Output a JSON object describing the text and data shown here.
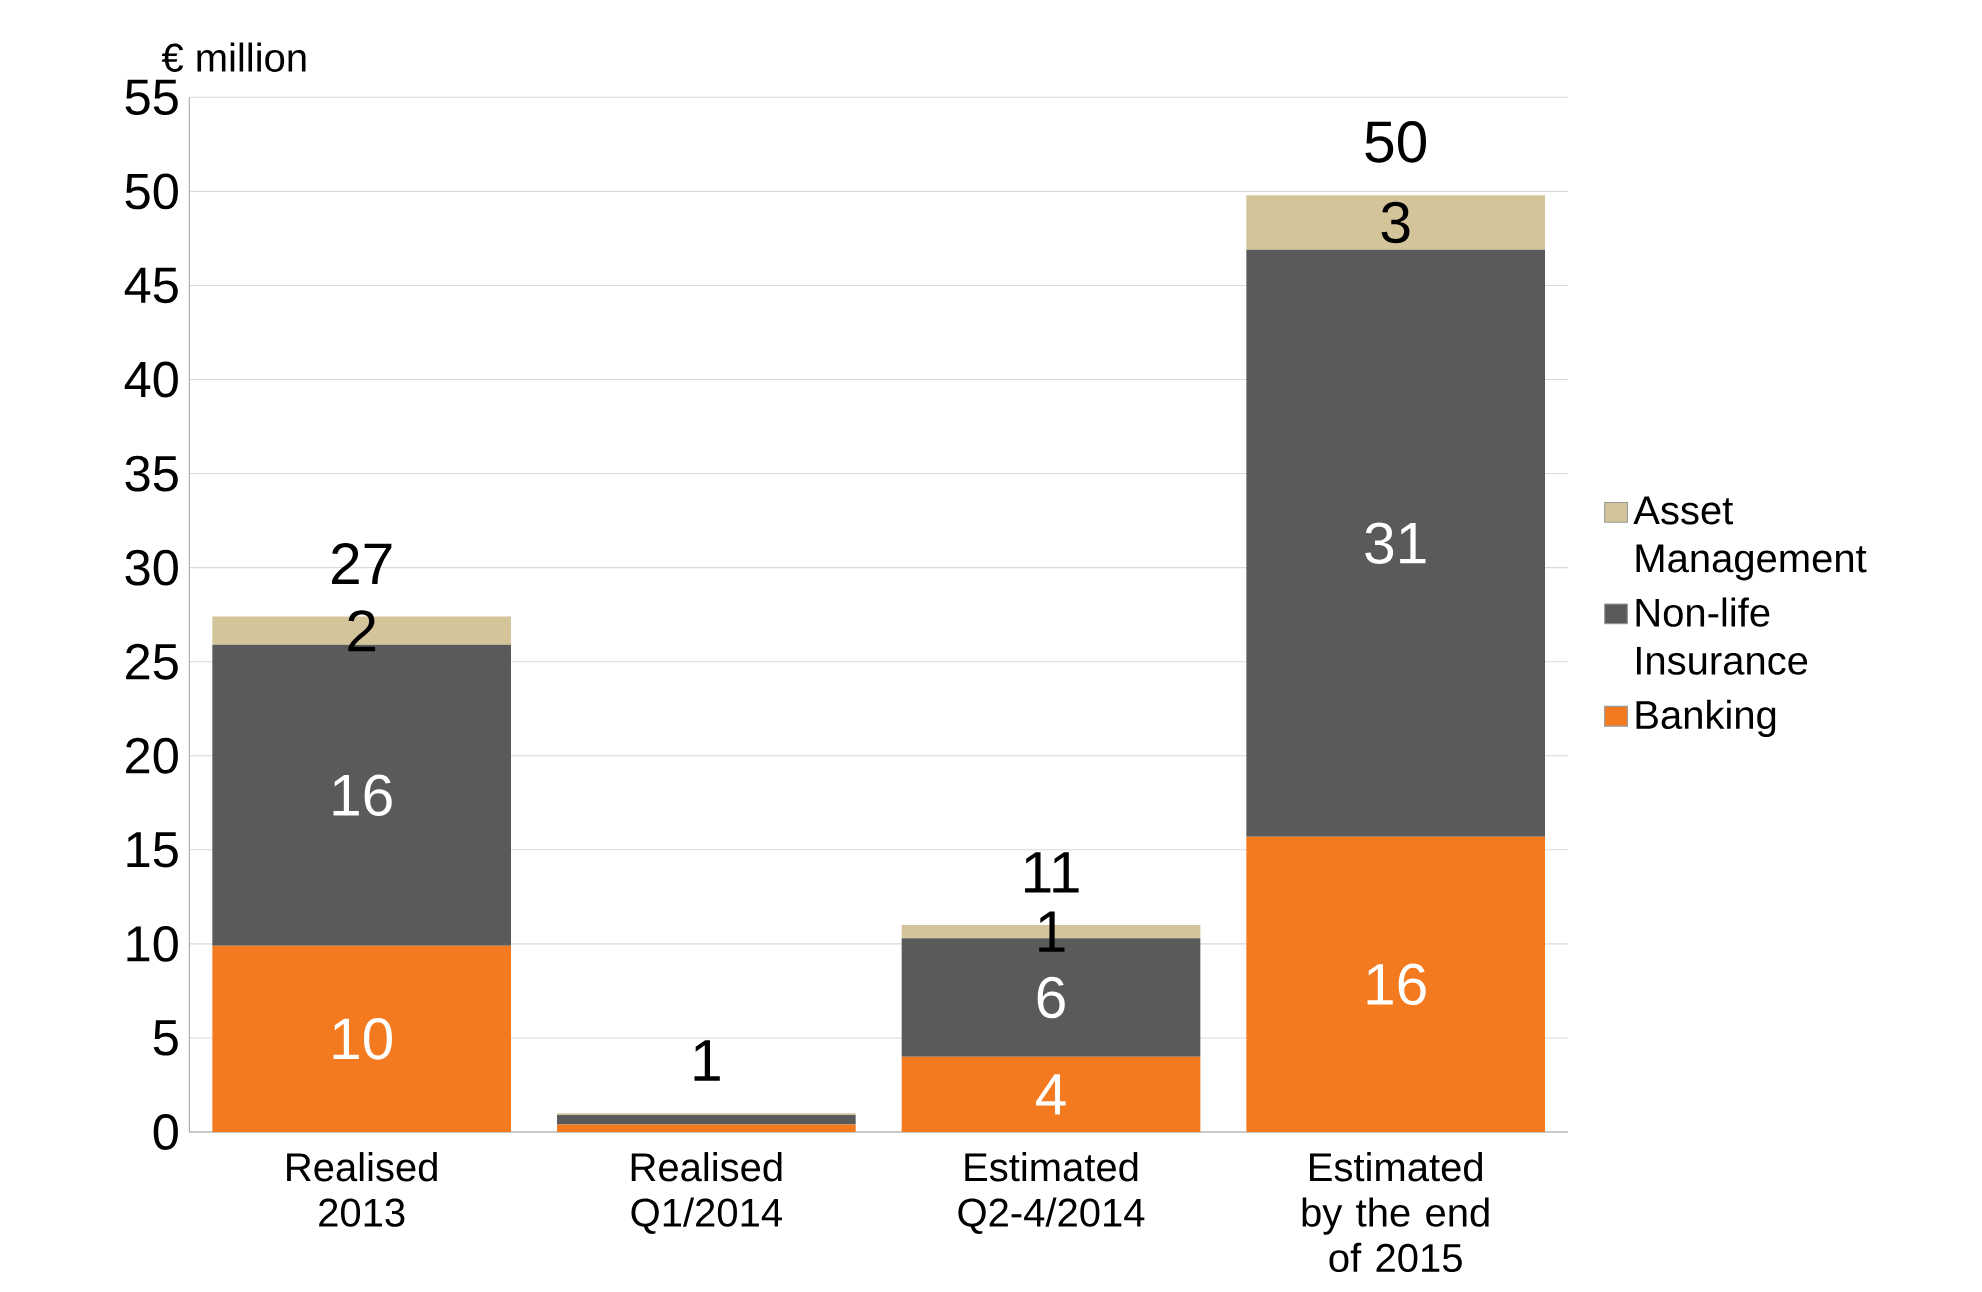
{
  "chart_data": {
    "type": "bar",
    "stacked": true,
    "ylabel": "€ million",
    "categories": [
      "Realised 2013",
      "Realised Q1/2014",
      "Estimated Q2-4/2014",
      "Estimated by the end of 2015"
    ],
    "series": [
      {
        "name": "Banking",
        "color": "#f47a20",
        "values": [
          9.9,
          0.4,
          4,
          15.7
        ],
        "value_labels": [
          "10",
          null,
          "4",
          "16"
        ]
      },
      {
        "name": "Non-life Insurance",
        "color": "#5a5a5a",
        "values": [
          16,
          0.5,
          6.3,
          31.2
        ],
        "value_labels": [
          "16",
          null,
          "6",
          "31"
        ]
      },
      {
        "name": "Asset Management",
        "color": "#d4c49a",
        "values": [
          1.5,
          0.1,
          0.7,
          2.9
        ],
        "value_labels": [
          "2",
          null,
          "1",
          "3"
        ]
      }
    ],
    "totals": [
      "27",
      "1",
      "11",
      "50"
    ],
    "ylim": [
      0,
      55
    ],
    "yticks": [
      0,
      5,
      10,
      15,
      20,
      25,
      30,
      35,
      40,
      45,
      50,
      55
    ],
    "grid": "y",
    "legend": "right"
  }
}
